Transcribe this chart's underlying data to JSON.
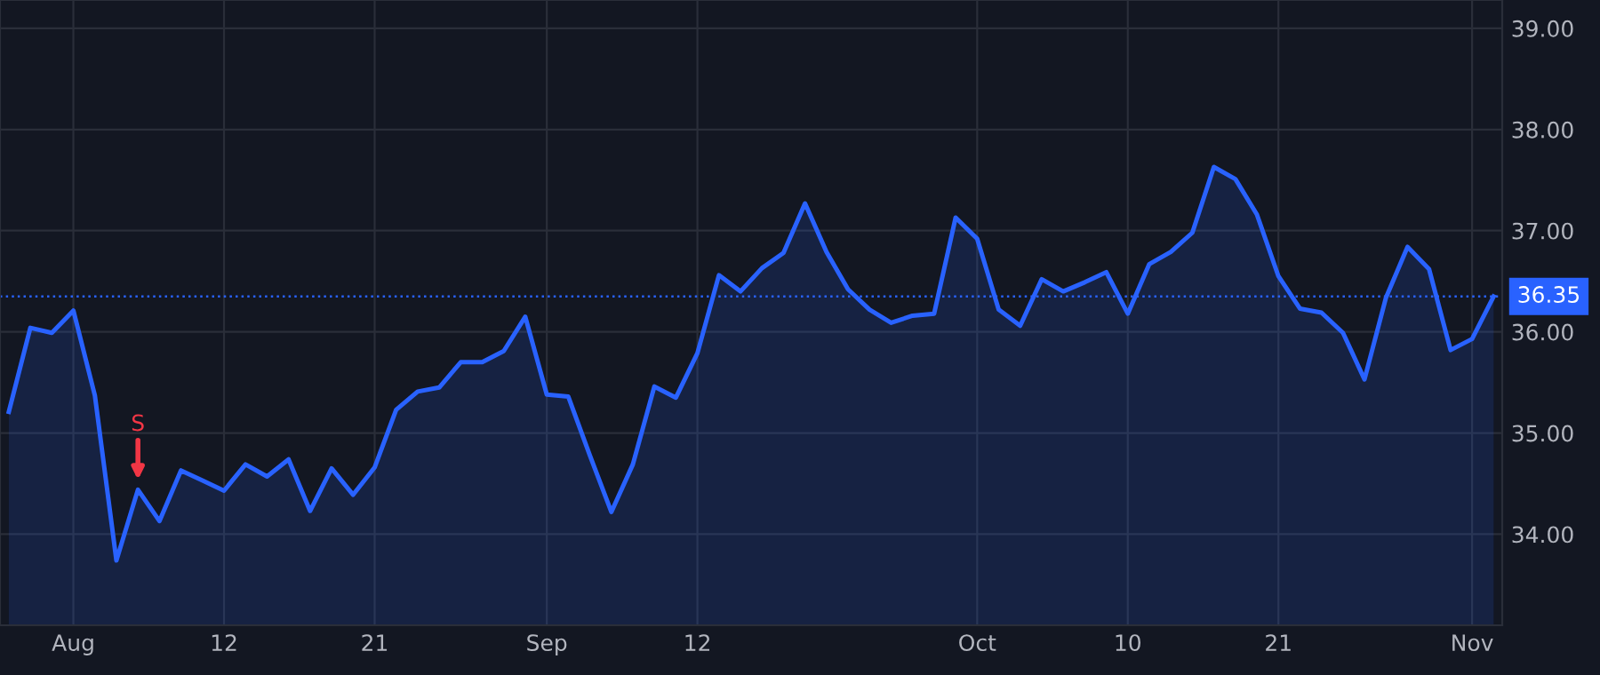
{
  "chart_data": {
    "type": "area",
    "categories": [
      null,
      null,
      null,
      "Aug",
      null,
      null,
      null,
      null,
      null,
      null,
      "12",
      null,
      null,
      null,
      null,
      null,
      null,
      "21",
      null,
      null,
      null,
      null,
      null,
      null,
      null,
      "Sep",
      null,
      null,
      null,
      null,
      null,
      null,
      "12",
      null,
      null,
      null,
      null,
      null,
      null,
      null,
      null,
      null,
      null,
      null,
      null,
      "Oct",
      null,
      null,
      null,
      null,
      null,
      null,
      "10",
      null,
      null,
      null,
      null,
      null,
      null,
      "21",
      null,
      null,
      null,
      null,
      null,
      null,
      null,
      null,
      "Nov",
      null
    ],
    "series": [
      {
        "color": "#2962ff",
        "values": [
          35.21,
          36.04,
          35.99,
          36.21,
          35.37,
          33.74,
          34.44,
          34.13,
          34.63,
          34.53,
          34.43,
          34.69,
          34.57,
          34.74,
          34.23,
          34.65,
          34.39,
          34.66,
          35.23,
          35.41,
          35.45,
          35.7,
          35.7,
          35.81,
          36.15,
          35.38,
          35.36,
          34.78,
          34.22,
          34.69,
          35.46,
          35.35,
          35.79,
          36.56,
          36.4,
          36.63,
          36.78,
          37.27,
          36.79,
          36.42,
          36.22,
          36.09,
          36.16,
          36.18,
          37.13,
          36.92,
          36.22,
          36.06,
          36.52,
          36.4,
          36.49,
          36.59,
          36.18,
          36.67,
          36.79,
          36.98,
          37.63,
          37.51,
          37.16,
          36.55,
          36.23,
          36.19,
          35.99,
          35.53,
          36.34,
          36.84,
          36.62,
          35.82,
          35.93,
          36.35
        ]
      }
    ],
    "ylim": [
      33.1,
      39.28
    ],
    "yticks": [
      {
        "value": 34,
        "label": "34.00"
      },
      {
        "value": 35,
        "label": "35.00"
      },
      {
        "value": 36,
        "label": "36.00"
      },
      {
        "value": 37,
        "label": "37.00"
      },
      {
        "value": 38,
        "label": "38.00"
      },
      {
        "value": 39,
        "label": "39.00"
      }
    ],
    "ref_lines": [
      {
        "axis": "y",
        "value": 36.35,
        "label": "36.35",
        "color": "#2962ff",
        "line_style": "dotted"
      }
    ],
    "annotations": [
      {
        "text": "S",
        "y": 34.44
      }
    ],
    "grid": true
  }
}
